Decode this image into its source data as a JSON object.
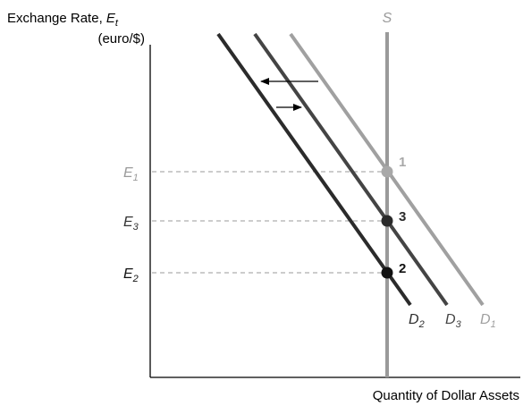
{
  "axes": {
    "y_label": "Exchange Rate, ",
    "y_label_var": "E",
    "y_label_sub": "t",
    "y_unit": "(euro/$)",
    "x_label": "Quantity of Dollar Assets"
  },
  "supply": {
    "label": "S",
    "color": "#9a9a9a"
  },
  "levels": [
    {
      "var": "E",
      "sub": "1",
      "color": "#9a9a9a"
    },
    {
      "var": "E",
      "sub": "3",
      "color": "#333333"
    },
    {
      "var": "E",
      "sub": "2",
      "color": "#111111"
    }
  ],
  "demand_curves": [
    {
      "var": "D",
      "sub": "2",
      "color": "#2b2b2b"
    },
    {
      "var": "D",
      "sub": "3",
      "color": "#444444"
    },
    {
      "var": "D",
      "sub": "1",
      "color": "#a0a0a0"
    }
  ],
  "points": [
    {
      "label": "1",
      "color": "#a8a8a8"
    },
    {
      "label": "3",
      "color": "#2a2a2a"
    },
    {
      "label": "2",
      "color": "#111111"
    }
  ],
  "colors": {
    "axis": "#000000",
    "guide": "#9a9a9a",
    "arrow": "#000000"
  }
}
